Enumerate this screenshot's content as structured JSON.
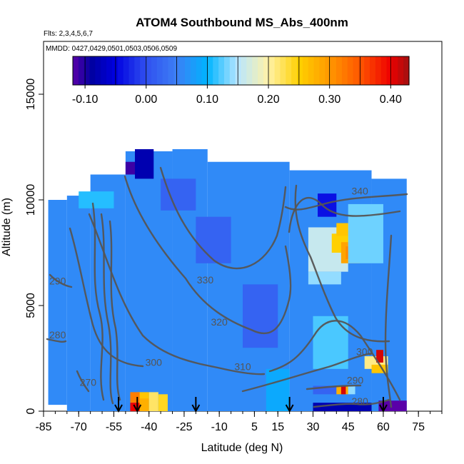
{
  "chart_data": {
    "type": "heatmap",
    "title": "ATOM4 Southbound MS_Abs_400nm",
    "flights_label": "Flts: 2,3,4,5,6,7",
    "dates_label": "MMDD: 0427,0429,0501,0503,0506,0509",
    "xlabel": "Latitude (deg N)",
    "ylabel": "Altitude (m)",
    "xlim": [
      -85,
      85
    ],
    "ylim": [
      0,
      17500
    ],
    "x_ticks": [
      -85,
      -70,
      -55,
      -40,
      -25,
      -10,
      5,
      15,
      30,
      45,
      60,
      75
    ],
    "x_tick_labels": [
      "-85",
      "-70",
      "-55",
      "-40",
      "-25",
      "-10",
      "5",
      "15",
      "30",
      "45",
      "60",
      "75"
    ],
    "y_ticks": [
      0,
      5000,
      10000,
      15000
    ],
    "y_tick_labels": [
      "0",
      "5000",
      "10000",
      "15000"
    ],
    "colorbar": {
      "range": [
        -0.12,
        0.43
      ],
      "ticks": [
        -0.1,
        0.0,
        0.1,
        0.2,
        0.3,
        0.4
      ],
      "tick_labels": [
        "-0.10",
        "0.00",
        "0.10",
        "0.20",
        "0.30",
        "0.40"
      ],
      "stops": [
        {
          "v": -0.12,
          "c": "#5a00a8"
        },
        {
          "v": -0.09,
          "c": "#0000a0"
        },
        {
          "v": -0.05,
          "c": "#0000e0"
        },
        {
          "v": 0.0,
          "c": "#3050f0"
        },
        {
          "v": 0.05,
          "c": "#3c7ff5"
        },
        {
          "v": 0.1,
          "c": "#00b4ff"
        },
        {
          "v": 0.15,
          "c": "#b8e6ff"
        },
        {
          "v": 0.2,
          "c": "#fff2a8"
        },
        {
          "v": 0.25,
          "c": "#ffd000"
        },
        {
          "v": 0.3,
          "c": "#ff9900"
        },
        {
          "v": 0.35,
          "c": "#ff5500"
        },
        {
          "v": 0.4,
          "c": "#ee0000"
        },
        {
          "v": 0.43,
          "c": "#a01010"
        }
      ]
    },
    "coverage": [
      {
        "lat": [
          -83,
          -75
        ],
        "alt": [
          300,
          10000
        ]
      },
      {
        "lat": [
          -75,
          -65
        ],
        "alt": [
          0,
          10200
        ]
      },
      {
        "lat": [
          -65,
          -50
        ],
        "alt": [
          0,
          11200
        ]
      },
      {
        "lat": [
          -50,
          -30
        ],
        "alt": [
          0,
          12300
        ]
      },
      {
        "lat": [
          -30,
          -15
        ],
        "alt": [
          0,
          12400
        ]
      },
      {
        "lat": [
          -15,
          20
        ],
        "alt": [
          0,
          11800
        ]
      },
      {
        "lat": [
          20,
          55
        ],
        "alt": [
          0,
          11400
        ]
      },
      {
        "lat": [
          55,
          70
        ],
        "alt": [
          0,
          11000
        ]
      }
    ],
    "background_value": 0.06,
    "anomalies": [
      {
        "lat": [
          -46,
          -38
        ],
        "alt": [
          12400,
          11000
        ],
        "value": -0.08
      },
      {
        "lat": [
          -50,
          -46
        ],
        "alt": [
          11800,
          11200
        ],
        "value": -0.11
      },
      {
        "lat": [
          -70,
          -55
        ],
        "alt": [
          10400,
          9600
        ],
        "value": 0.11
      },
      {
        "lat": [
          -35,
          -20
        ],
        "alt": [
          11000,
          9500
        ],
        "value": 0.02
      },
      {
        "lat": [
          -20,
          -5
        ],
        "alt": [
          9200,
          7000
        ],
        "value": 0.02
      },
      {
        "lat": [
          0,
          15
        ],
        "alt": [
          6000,
          3000
        ],
        "value": 0.02
      },
      {
        "lat": [
          10,
          20
        ],
        "alt": [
          2000,
          0
        ],
        "value": 0.09
      },
      {
        "lat": [
          32,
          40
        ],
        "alt": [
          10300,
          9200
        ],
        "value": -0.04
      },
      {
        "lat": [
          28,
          45
        ],
        "alt": [
          8700,
          6600
        ],
        "value": 0.16
      },
      {
        "lat": [
          38,
          49
        ],
        "alt": [
          8400,
          7500
        ],
        "value": 0.25
      },
      {
        "lat": [
          42,
          50
        ],
        "alt": [
          8000,
          7000
        ],
        "value": 0.29
      },
      {
        "lat": [
          44,
          50
        ],
        "alt": [
          7800,
          7200
        ],
        "value": 0.31
      },
      {
        "lat": [
          40,
          48
        ],
        "alt": [
          8900,
          8300
        ],
        "value": 0.26
      },
      {
        "lat": [
          28,
          42
        ],
        "alt": [
          6600,
          6000
        ],
        "value": 0.14
      },
      {
        "lat": [
          30,
          45
        ],
        "alt": [
          4500,
          2000
        ],
        "value": 0.12
      },
      {
        "lat": [
          45,
          60
        ],
        "alt": [
          9800,
          7000
        ],
        "value": 0.13
      },
      {
        "lat": [
          52,
          62
        ],
        "alt": [
          2600,
          2000
        ],
        "value": 0.21
      },
      {
        "lat": [
          55,
          62
        ],
        "alt": [
          2200,
          1800
        ],
        "value": 0.26
      },
      {
        "lat": [
          57,
          60
        ],
        "alt": [
          2900,
          2300
        ],
        "value": 0.41
      },
      {
        "lat": [
          30,
          40
        ],
        "alt": [
          1200,
          800
        ],
        "value": 0.02
      },
      {
        "lat": [
          40,
          45
        ],
        "alt": [
          1200,
          800
        ],
        "value": 0.28
      },
      {
        "lat": [
          42,
          44
        ],
        "alt": [
          1200,
          800
        ],
        "value": 0.41
      },
      {
        "lat": [
          45,
          48
        ],
        "alt": [
          1200,
          800
        ],
        "value": 0.14
      },
      {
        "lat": [
          30,
          55
        ],
        "alt": [
          400,
          0
        ],
        "value": -0.08
      },
      {
        "lat": [
          58,
          70
        ],
        "alt": [
          500,
          0
        ],
        "value": -0.12
      },
      {
        "lat": [
          -45,
          -40
        ],
        "alt": [
          900,
          0
        ],
        "value": 0.26
      },
      {
        "lat": [
          -48,
          -44
        ],
        "alt": [
          900,
          400
        ],
        "value": 0.32
      },
      {
        "lat": [
          -48,
          -44
        ],
        "alt": [
          400,
          0
        ],
        "value": 0.4
      },
      {
        "lat": [
          -44,
          -40
        ],
        "alt": [
          600,
          0
        ],
        "value": 0.28
      },
      {
        "lat": [
          -40,
          -36
        ],
        "alt": [
          900,
          0
        ],
        "value": 0.22
      },
      {
        "lat": [
          -36,
          -32
        ],
        "alt": [
          800,
          0
        ],
        "value": 0.24
      }
    ],
    "contour_levels": [
      {
        "label": "340",
        "lat": 50,
        "alt": 10250
      },
      {
        "label": "330",
        "lat": -16,
        "alt": 6050
      },
      {
        "label": "320",
        "lat": -10,
        "alt": 4050
      },
      {
        "label": "310",
        "lat": 0,
        "alt": 1950
      },
      {
        "label": "300",
        "lat": -38,
        "alt": 2150
      },
      {
        "label": "300",
        "lat": 52,
        "alt": 2650
      },
      {
        "label": "290",
        "lat": -79,
        "alt": 6000
      },
      {
        "label": "280",
        "lat": -79,
        "alt": 3450
      },
      {
        "label": "280",
        "lat": 50,
        "alt": 300
      },
      {
        "label": "290",
        "lat": 48,
        "alt": 1300
      },
      {
        "label": "270",
        "lat": -66,
        "alt": 1200
      }
    ],
    "flight_markers_lat": [
      -53,
      -45,
      -20,
      20,
      60
    ]
  }
}
